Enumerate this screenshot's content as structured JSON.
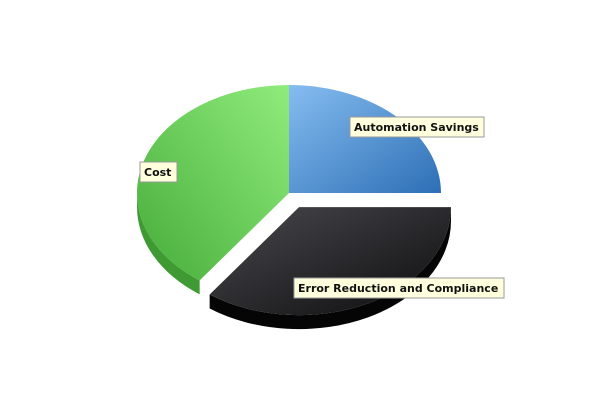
{
  "chart_data": {
    "type": "pie",
    "style": "3d-exploded",
    "categories": [
      "Automation Savings",
      "Error Reduction and Compliance",
      "Cost"
    ],
    "values": [
      25,
      35,
      40
    ],
    "exploded": [
      "Error Reduction and Compliance"
    ],
    "colors": [
      "#4a8fd6",
      "#222222",
      "#52b848"
    ],
    "label_style": {
      "background": "#ffffdd",
      "border": "#999999"
    },
    "title": "",
    "legend": "none"
  }
}
